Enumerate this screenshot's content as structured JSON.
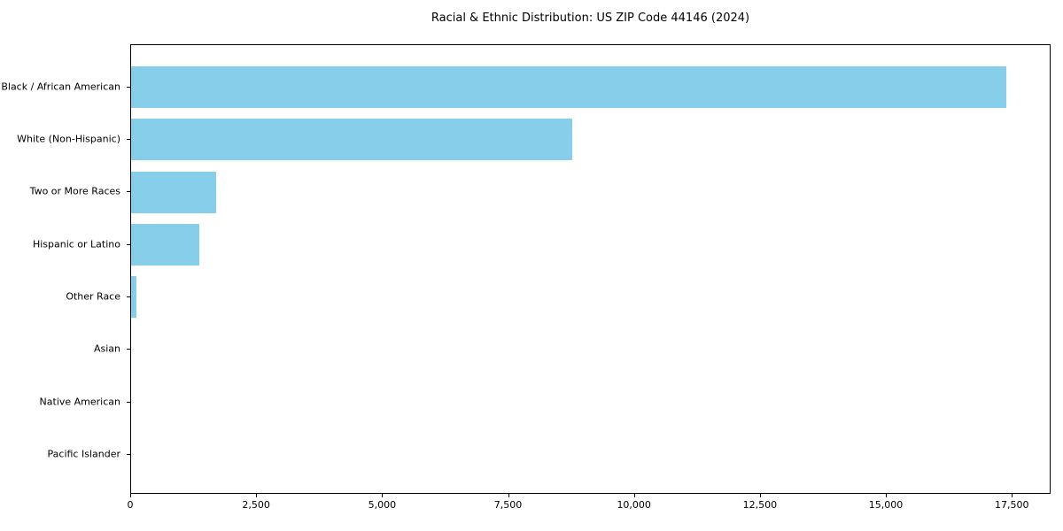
{
  "chart_data": {
    "type": "bar",
    "orientation": "horizontal",
    "title": "Racial & Ethnic Distribution: US ZIP Code 44146 (2024)",
    "categories": [
      "Black / African American",
      "White (Non-Hispanic)",
      "Two or More Races",
      "Hispanic or Latino",
      "Other Race",
      "Asian",
      "Native American",
      "Pacific Islander"
    ],
    "values": [
      17400,
      8780,
      1700,
      1350,
      105,
      0,
      0,
      0
    ],
    "xlabel": "",
    "ylabel": "",
    "xlim": [
      0,
      18270
    ],
    "xticks": [
      0,
      2500,
      5000,
      7500,
      10000,
      12500,
      15000,
      17500
    ],
    "xtick_labels": [
      "0",
      "2,500",
      "5,000",
      "7,500",
      "10,000",
      "12,500",
      "15,000",
      "17,500"
    ],
    "grid": false,
    "legend": "none",
    "bar_color": "#87CEEB"
  },
  "colors": {
    "bar": "#87CEEB",
    "axis": "#000000",
    "background": "#ffffff",
    "text": "#000000"
  }
}
